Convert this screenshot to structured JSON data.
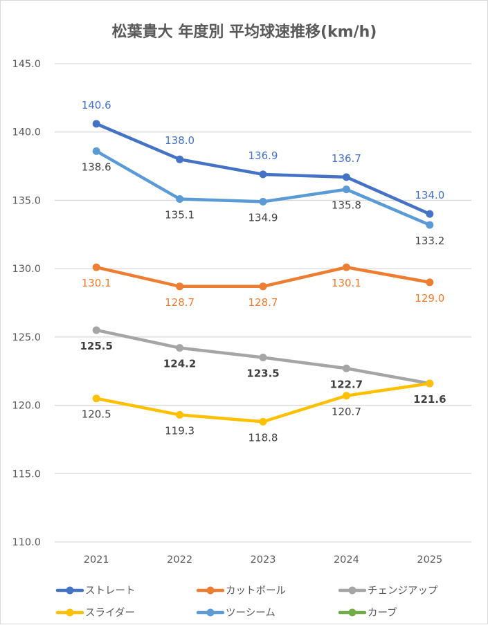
{
  "chart_data": {
    "type": "line",
    "title": "松葉貴大 年度別 平均球速推移(km/h)",
    "xlabel": "",
    "ylabel": "",
    "categories": [
      "2021",
      "2022",
      "2023",
      "2024",
      "2025"
    ],
    "ylim": [
      110.0,
      145.0
    ],
    "yticks": [
      "110.0",
      "115.0",
      "120.0",
      "125.0",
      "130.0",
      "135.0",
      "140.0",
      "145.0"
    ],
    "ytick_values": [
      110,
      115,
      120,
      125,
      130,
      135,
      140,
      145
    ],
    "grid": true,
    "legend_position": "bottom",
    "series": [
      {
        "name": "ストレート",
        "color": "#4472C4",
        "values": [
          140.6,
          138.0,
          136.9,
          136.7,
          134.0
        ],
        "labels": [
          "140.6",
          "138.0",
          "136.9",
          "136.7",
          "134.0"
        ],
        "label_color": "#4472C4",
        "label_bold": false,
        "label_pos": "above"
      },
      {
        "name": "カットボール",
        "color": "#ED7D31",
        "values": [
          130.1,
          128.7,
          128.7,
          130.1,
          129.0
        ],
        "labels": [
          "130.1",
          "128.7",
          "128.7",
          "130.1",
          "129.0"
        ],
        "label_color": "#ED7D31",
        "label_bold": false,
        "label_pos": "below"
      },
      {
        "name": "チェンジアップ",
        "color": "#A5A5A5",
        "values": [
          125.5,
          124.2,
          123.5,
          122.7,
          121.6
        ],
        "labels": [
          "125.5",
          "124.2",
          "123.5",
          "122.7",
          "121.6"
        ],
        "label_color": "#404040",
        "label_bold": true,
        "label_pos": "below"
      },
      {
        "name": "スライダー",
        "color": "#FFC000",
        "values": [
          120.5,
          119.3,
          118.8,
          120.7,
          121.6
        ],
        "labels": [
          "120.5",
          "119.3",
          "118.8",
          "120.7",
          ""
        ],
        "label_color": "#404040",
        "label_bold": false,
        "label_pos": "below"
      },
      {
        "name": "ツーシーム",
        "color": "#5B9BD5",
        "values": [
          138.6,
          135.1,
          134.9,
          135.8,
          133.2
        ],
        "labels": [
          "138.6",
          "135.1",
          "134.9",
          "135.8",
          "133.2"
        ],
        "label_color": "#404040",
        "label_bold": false,
        "label_pos": "below"
      },
      {
        "name": "カーブ",
        "color": "#70AD47",
        "values": [
          null,
          null,
          null,
          null,
          null
        ],
        "labels": [],
        "label_color": "#404040",
        "label_bold": false,
        "label_pos": "below"
      }
    ]
  }
}
